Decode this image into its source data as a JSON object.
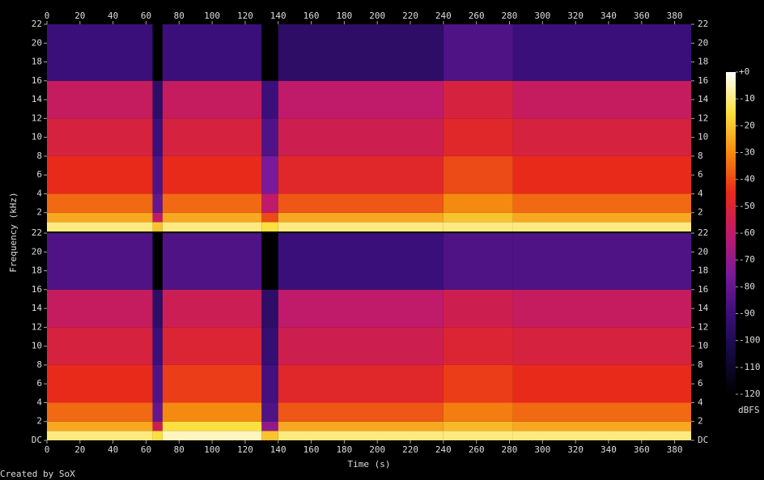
{
  "chart_data": {
    "type": "spectrogram",
    "x_label": "Time (s)",
    "y_label": "Frequency (kHz)",
    "footer": "Created by SoX",
    "xlim": [
      0,
      390
    ],
    "xticks": [
      0,
      20,
      40,
      60,
      80,
      100,
      120,
      140,
      160,
      180,
      200,
      220,
      240,
      260,
      280,
      300,
      320,
      340,
      360,
      380
    ],
    "segments": [
      0,
      64,
      70,
      130,
      140,
      240,
      282,
      390
    ],
    "bands": [
      0,
      1,
      2,
      4,
      8,
      12,
      16,
      22
    ],
    "colormap": [
      "#000000",
      "#14093f",
      "#3a0f7a",
      "#7a1a9a",
      "#c01a6a",
      "#e82a1a",
      "#f58a10",
      "#fbe040",
      "#ffffff"
    ],
    "channels": [
      {
        "ylim": [
          0,
          22
        ],
        "yticks": [
          2,
          4,
          6,
          8,
          10,
          12,
          14,
          16,
          18,
          20,
          22
        ],
        "values": [
          [
            -10,
            -25,
            -35,
            -45,
            -52,
            -58,
            -90
          ],
          [
            -20,
            -60,
            -80,
            -85,
            -90,
            -95,
            -120
          ],
          [
            -10,
            -25,
            -35,
            -45,
            -52,
            -58,
            -90
          ],
          [
            -15,
            -40,
            -60,
            -75,
            -85,
            -90,
            -120
          ],
          [
            -10,
            -25,
            -38,
            -48,
            -55,
            -60,
            -95
          ],
          [
            -10,
            -20,
            -30,
            -40,
            -48,
            -52,
            -85
          ],
          [
            -10,
            -25,
            -35,
            -45,
            -52,
            -58,
            -90
          ]
        ]
      },
      {
        "ylim": [
          0,
          22
        ],
        "yticks": [
          {
            "value": 0,
            "label": "DC"
          },
          2,
          4,
          6,
          8,
          10,
          12,
          14,
          16,
          18,
          20,
          22
        ],
        "values": [
          [
            -10,
            -25,
            -35,
            -45,
            -52,
            -58,
            -85
          ],
          [
            -15,
            -55,
            -80,
            -85,
            -90,
            -95,
            -120
          ],
          [
            -5,
            -15,
            -30,
            -42,
            -50,
            -56,
            -85
          ],
          [
            -20,
            -70,
            -85,
            -88,
            -92,
            -95,
            -120
          ],
          [
            -10,
            -25,
            -38,
            -48,
            -55,
            -60,
            -90
          ],
          [
            -10,
            -22,
            -32,
            -42,
            -50,
            -55,
            -85
          ],
          [
            -10,
            -25,
            -35,
            -45,
            -52,
            -58,
            -85
          ]
        ]
      }
    ],
    "colorbar": {
      "label": "dBFS",
      "lim": [
        -120,
        0
      ],
      "ticks": [
        {
          "value": 0,
          "label": "+0"
        },
        -10,
        -20,
        -30,
        -40,
        -50,
        -60,
        -70,
        -80,
        -90,
        -100,
        -110,
        -120
      ]
    }
  }
}
